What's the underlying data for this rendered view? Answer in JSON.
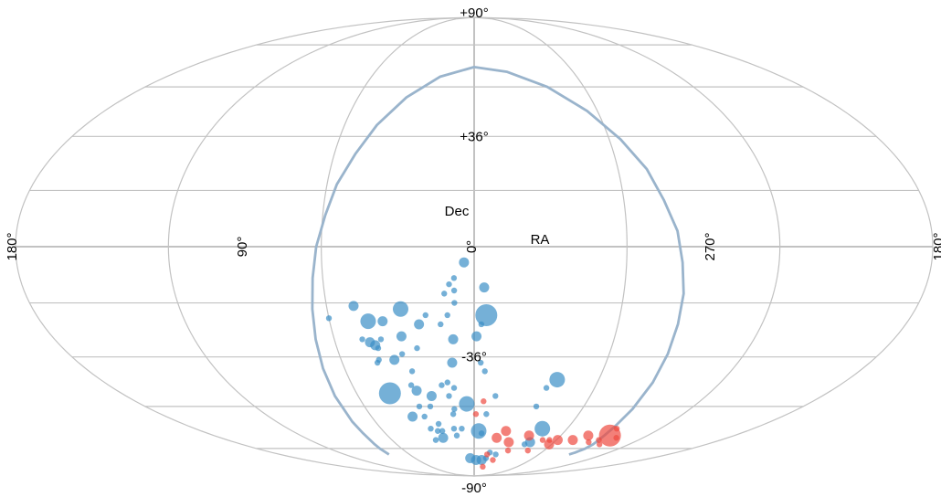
{
  "chart_data": {
    "type": "scatter",
    "projection": "mollweide",
    "grid": true,
    "xlabel": "RA",
    "ylabel": "Dec",
    "ra_tick_labels": [
      {
        "ra": 180,
        "label": "180°"
      },
      {
        "ra": 90,
        "label": "90°"
      },
      {
        "ra": 0,
        "label": "0°"
      },
      {
        "ra": 270,
        "label": "270°"
      },
      {
        "ra": 180,
        "label": "180°"
      }
    ],
    "dec_tick_labels": [
      {
        "dec": 90,
        "label": "+90°"
      },
      {
        "dec": 36,
        "label": "+36°"
      },
      {
        "dec": -36,
        "label": "-36°"
      },
      {
        "dec": -90,
        "label": "-90°"
      }
    ],
    "colors": {
      "blue": "#3a8fc6",
      "red": "#ee4a40",
      "curve": "#9ab4cc",
      "grid": "#c2c2c2"
    },
    "series": [
      {
        "color": "#3a8fc6",
        "points": [
          {
            "ra": 356,
            "dec": -5,
            "s": 2
          },
          {
            "ra": 352,
            "dec": -10,
            "s": 1
          },
          {
            "ra": 350,
            "dec": -12,
            "s": 1
          },
          {
            "ra": 4,
            "dec": -13,
            "s": 2
          },
          {
            "ra": 352,
            "dec": -14,
            "s": 1
          },
          {
            "ra": 348,
            "dec": -15,
            "s": 1
          },
          {
            "ra": 352,
            "dec": -18,
            "s": 1
          },
          {
            "ra": 330,
            "dec": -20,
            "s": 3
          },
          {
            "ra": 311,
            "dec": -19,
            "s": 2
          },
          {
            "ra": 5,
            "dec": -22,
            "s": 4
          },
          {
            "ra": 349,
            "dec": -22,
            "s": 1
          },
          {
            "ra": 340,
            "dec": -22,
            "s": 1
          },
          {
            "ra": 300,
            "dec": -23,
            "s": 1
          },
          {
            "ra": 322,
            "dec": -24,
            "s": 2
          },
          {
            "ra": 316,
            "dec": -24,
            "s": 3
          },
          {
            "ra": 337,
            "dec": -25,
            "s": 2
          },
          {
            "ra": 346,
            "dec": -25,
            "s": 1
          },
          {
            "ra": 3,
            "dec": -25,
            "s": 1
          },
          {
            "ra": 1,
            "dec": -29,
            "s": 2
          },
          {
            "ra": 312,
            "dec": -30,
            "s": 1
          },
          {
            "ra": 329,
            "dec": -29,
            "s": 2
          },
          {
            "ra": 351,
            "dec": -30,
            "s": 2
          },
          {
            "ra": 315,
            "dec": -31,
            "s": 2
          },
          {
            "ra": 320,
            "dec": -30,
            "s": 1
          },
          {
            "ra": 317,
            "dec": -32,
            "s": 2
          },
          {
            "ra": 335,
            "dec": -33,
            "s": 1
          },
          {
            "ra": 328,
            "dec": -35,
            "s": 1
          },
          {
            "ra": 318,
            "dec": -33,
            "s": 1
          },
          {
            "ra": 3,
            "dec": -38,
            "s": 1
          },
          {
            "ra": 350,
            "dec": -38,
            "s": 2
          },
          {
            "ra": 324,
            "dec": -37,
            "s": 2
          },
          {
            "ra": 317,
            "dec": -37,
            "s": 1
          },
          {
            "ra": 316,
            "dec": -38,
            "s": 1
          },
          {
            "ra": 5,
            "dec": -41,
            "s": 1
          },
          {
            "ra": 331,
            "dec": -41,
            "s": 1
          },
          {
            "ra": 40,
            "dec": -44,
            "s": 3
          },
          {
            "ra": 347,
            "dec": -45,
            "s": 1
          },
          {
            "ra": 36,
            "dec": -47,
            "s": 1
          },
          {
            "ra": 344,
            "dec": -46,
            "s": 1
          },
          {
            "ra": 329,
            "dec": -46,
            "s": 1
          },
          {
            "ra": 350,
            "dec": -47,
            "s": 1
          },
          {
            "ra": 331,
            "dec": -48,
            "s": 2
          },
          {
            "ra": 317,
            "dec": -49,
            "s": 4
          },
          {
            "ra": 347,
            "dec": -50,
            "s": 1
          },
          {
            "ra": 338,
            "dec": -50,
            "s": 2
          },
          {
            "ra": 11,
            "dec": -50,
            "s": 1
          },
          {
            "ra": 356,
            "dec": -53,
            "s": 3
          },
          {
            "ra": 336,
            "dec": -54,
            "s": 1
          },
          {
            "ra": 330,
            "dec": -54,
            "s": 1
          },
          {
            "ra": 34,
            "dec": -54,
            "s": 1
          },
          {
            "ra": 349,
            "dec": -55,
            "s": 1
          },
          {
            "ra": 7,
            "dec": -57,
            "s": 1
          },
          {
            "ra": 348,
            "dec": -57,
            "s": 1
          },
          {
            "ra": 324,
            "dec": -58,
            "s": 2
          },
          {
            "ra": 331,
            "dec": -58,
            "s": 1
          },
          {
            "ra": 44,
            "dec": -63,
            "s": 3
          },
          {
            "ra": 338,
            "dec": -61,
            "s": 1
          },
          {
            "ra": 347,
            "dec": -63,
            "s": 1
          },
          {
            "ra": 3,
            "dec": -64,
            "s": 3
          },
          {
            "ra": 352,
            "dec": -63,
            "s": 1
          },
          {
            "ra": 332,
            "dec": -63,
            "s": 1
          },
          {
            "ra": 336,
            "dec": -64,
            "s": 1
          },
          {
            "ra": 339,
            "dec": -64,
            "s": 1
          },
          {
            "ra": 5,
            "dec": -65,
            "s": 1
          },
          {
            "ra": 338,
            "dec": -67,
            "s": 2
          },
          {
            "ra": 348,
            "dec": -66,
            "s": 1
          },
          {
            "ra": 332,
            "dec": -68,
            "s": 1
          },
          {
            "ra": 42,
            "dec": -69,
            "s": 2
          },
          {
            "ra": 39,
            "dec": -70,
            "s": 1
          },
          {
            "ra": 14,
            "dec": -74,
            "s": 1
          },
          {
            "ra": 12,
            "dec": -77,
            "s": 1
          },
          {
            "ra": 8,
            "dec": -78,
            "s": 2
          },
          {
            "ra": 2,
            "dec": -78,
            "s": 2
          },
          {
            "ra": 356,
            "dec": -77,
            "s": 2
          },
          {
            "ra": 20,
            "dec": -75,
            "s": 1
          }
        ]
      },
      {
        "color": "#ee4a40",
        "points": [
          {
            "ra": 5,
            "dec": -52,
            "s": 1
          },
          {
            "ra": 1,
            "dec": -57,
            "s": 1
          },
          {
            "ra": 92,
            "dec": -63,
            "s": 1
          },
          {
            "ra": 94,
            "dec": -66,
            "s": 4
          },
          {
            "ra": 101,
            "dec": -67,
            "s": 1
          },
          {
            "ra": 91,
            "dec": -68,
            "s": 1
          },
          {
            "ra": 79,
            "dec": -66,
            "s": 2
          },
          {
            "ra": 86,
            "dec": -69,
            "s": 1
          },
          {
            "ra": 97,
            "dec": -70,
            "s": 1
          },
          {
            "ra": 72,
            "dec": -68,
            "s": 2
          },
          {
            "ra": 61,
            "dec": -68,
            "s": 2
          },
          {
            "ra": 55,
            "dec": -68,
            "s": 1
          },
          {
            "ra": 58,
            "dec": -70,
            "s": 2
          },
          {
            "ra": 50,
            "dec": -68,
            "s": 1
          },
          {
            "ra": 38,
            "dec": -66,
            "s": 2
          },
          {
            "ra": 26,
            "dec": -69,
            "s": 2
          },
          {
            "ra": 21,
            "dec": -64,
            "s": 2
          },
          {
            "ra": 16,
            "dec": -67,
            "s": 2
          },
          {
            "ra": 29,
            "dec": -73,
            "s": 1
          },
          {
            "ra": 46,
            "dec": -73,
            "s": 1
          },
          {
            "ra": 12,
            "dec": -75,
            "s": 1
          },
          {
            "ra": 20,
            "dec": -78,
            "s": 1
          },
          {
            "ra": 12,
            "dec": -82,
            "s": 1
          }
        ]
      }
    ],
    "curve_points": [
      [
        281,
        -75
      ],
      [
        282,
        -72
      ],
      [
        283,
        -70
      ],
      [
        285,
        -65
      ],
      [
        286,
        -60
      ],
      [
        288,
        -50
      ],
      [
        290,
        -40
      ],
      [
        292,
        -30
      ],
      [
        294,
        -20
      ],
      [
        296,
        -10
      ],
      [
        298,
        0
      ],
      [
        301,
        10
      ],
      [
        304,
        20
      ],
      [
        309,
        30
      ],
      [
        315,
        40
      ],
      [
        325,
        50
      ],
      [
        340,
        58
      ],
      [
        0,
        62
      ],
      [
        20,
        60
      ],
      [
        40,
        54
      ],
      [
        55,
        45
      ],
      [
        65,
        35
      ],
      [
        72,
        25
      ],
      [
        76,
        15
      ],
      [
        80,
        5
      ],
      [
        82,
        -5
      ],
      [
        84,
        -15
      ],
      [
        85,
        -25
      ],
      [
        86,
        -35
      ],
      [
        87,
        -45
      ],
      [
        88,
        -55
      ],
      [
        89,
        -62
      ],
      [
        90,
        -66
      ],
      [
        91,
        -68
      ],
      [
        92,
        -70
      ],
      [
        92,
        -72
      ],
      [
        90,
        -74
      ],
      [
        88,
        -75
      ]
    ]
  }
}
